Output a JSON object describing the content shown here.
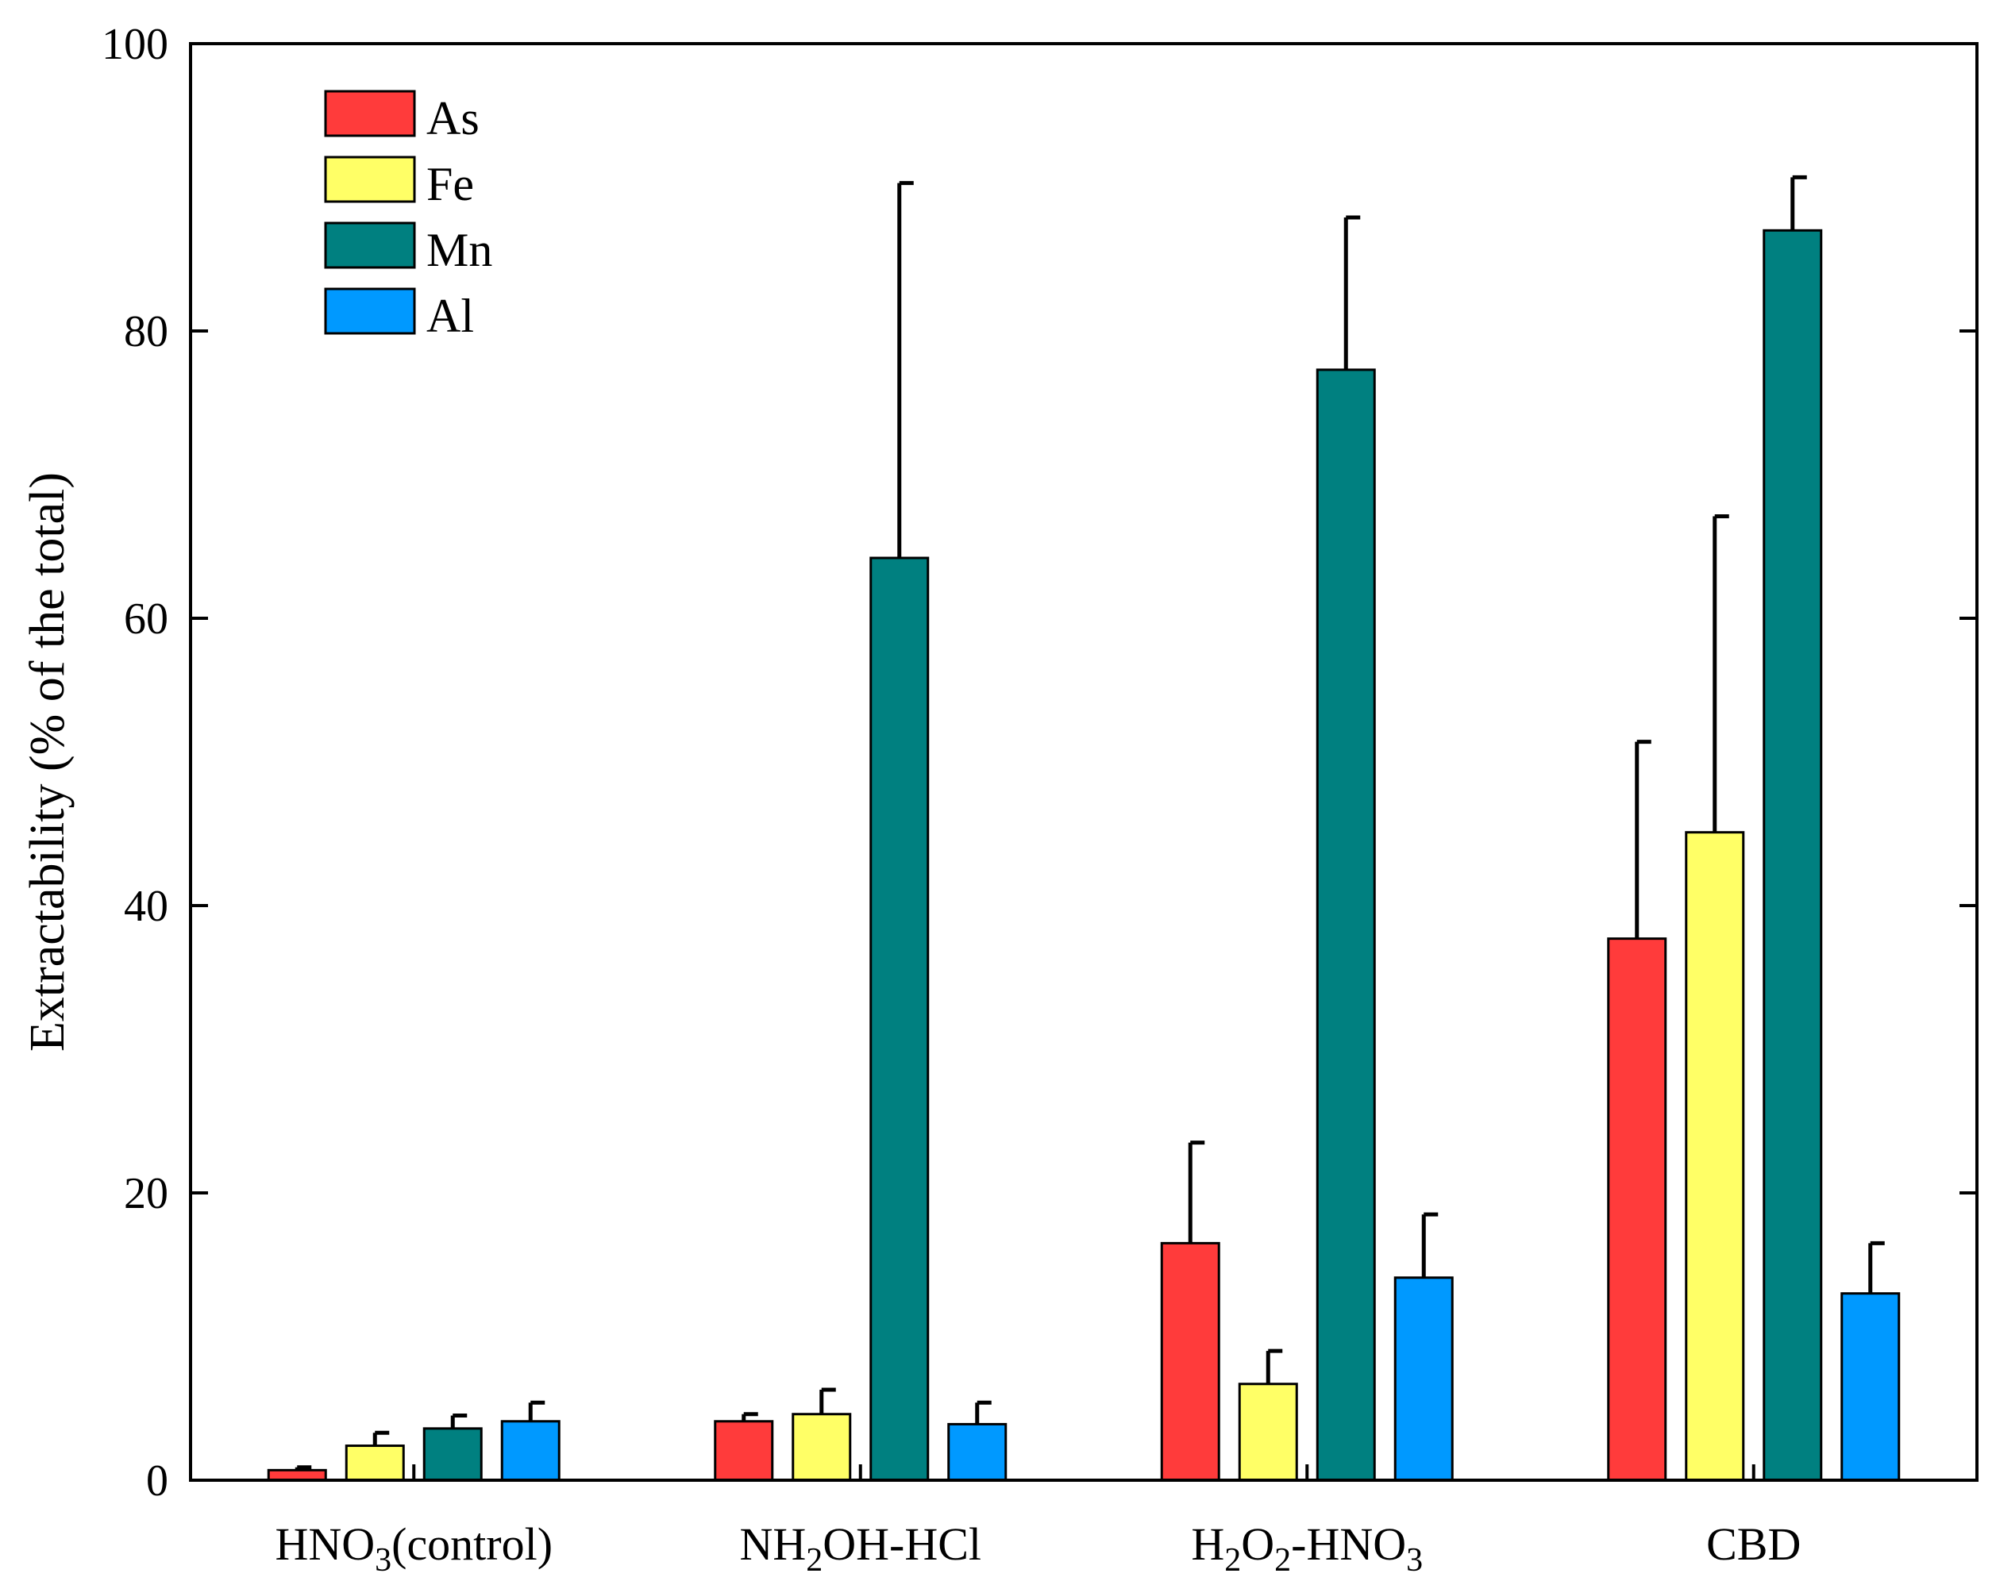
{
  "chart_data": {
    "type": "bar",
    "title": "",
    "xlabel": "",
    "ylabel": "Extractability (% of the total)",
    "ylim": [
      0,
      100
    ],
    "yticks": [
      "0",
      "20",
      "40",
      "60",
      "80",
      "100"
    ],
    "grid": false,
    "legend_position": "top-left",
    "categories": [
      {
        "main": "HNO",
        "sub": "3",
        "tail": "(control)"
      },
      {
        "main": "NH",
        "sub": "2",
        "tail": "OH-HCl"
      },
      {
        "parts": [
          {
            "t": "H"
          },
          {
            "t": "2",
            "sub": true
          },
          {
            "t": "O"
          },
          {
            "t": "2",
            "sub": true
          },
          {
            "t": "-HNO"
          },
          {
            "t": "3",
            "sub": true
          }
        ]
      },
      {
        "parts": [
          {
            "t": "CBD"
          }
        ]
      }
    ],
    "series": [
      {
        "name": "As",
        "color": "#ff3b3b",
        "values": [
          0.7,
          4.1,
          16.5,
          37.7
        ],
        "errors": [
          0.2,
          0.5,
          7.0,
          13.7
        ]
      },
      {
        "name": "Fe",
        "color": "#ffff66",
        "values": [
          2.4,
          4.6,
          6.7,
          45.1
        ],
        "errors": [
          0.9,
          1.7,
          2.3,
          22.0
        ]
      },
      {
        "name": "Mn",
        "color": "#008080",
        "values": [
          3.6,
          64.2,
          77.3,
          87.0
        ],
        "errors": [
          0.9,
          26.1,
          10.6,
          3.7
        ]
      },
      {
        "name": "Al",
        "color": "#0099ff",
        "values": [
          4.1,
          3.9,
          14.1,
          13.0
        ],
        "errors": [
          1.3,
          1.5,
          4.4,
          3.5
        ]
      }
    ]
  }
}
